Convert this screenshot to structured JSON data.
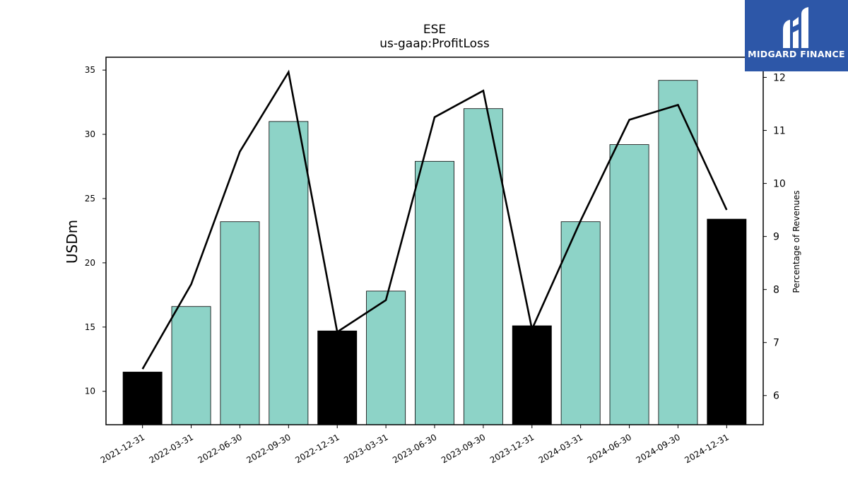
{
  "chart_data": {
    "type": "bar",
    "title": "ESE",
    "subtitle": "us-gaap:ProfitLoss",
    "ylabel": "USDm",
    "y2label": "Percentage of Revenues",
    "ylim": [
      7.4,
      36
    ],
    "y2lim": [
      5.45,
      12.38
    ],
    "yticks": [
      10,
      15,
      20,
      25,
      30,
      35
    ],
    "y2ticks": [
      6,
      7,
      8,
      9,
      10,
      11,
      12
    ],
    "categories": [
      "2021-12-31",
      "2022-03-31",
      "2022-06-30",
      "2022-09-30",
      "2022-12-31",
      "2023-03-31",
      "2023-06-30",
      "2023-09-30",
      "2023-12-31",
      "2024-03-31",
      "2024-06-30",
      "2024-09-30",
      "2024-12-31"
    ],
    "series": [
      {
        "kind": "bar",
        "values": [
          11.5,
          16.6,
          23.2,
          31.0,
          14.7,
          17.8,
          27.9,
          32.0,
          15.1,
          23.2,
          29.2,
          34.2,
          23.4
        ],
        "colors": [
          "#000000",
          "#8dd3c7",
          "#8dd3c7",
          "#8dd3c7",
          "#000000",
          "#8dd3c7",
          "#8dd3c7",
          "#8dd3c7",
          "#000000",
          "#8dd3c7",
          "#8dd3c7",
          "#8dd3c7",
          "#000000"
        ]
      },
      {
        "kind": "line",
        "axis": "right",
        "color": "#000000",
        "values": [
          6.5,
          8.1,
          10.6,
          12.1,
          7.2,
          7.8,
          11.25,
          11.75,
          7.25,
          9.3,
          11.2,
          11.48,
          9.5
        ]
      }
    ],
    "grid": false,
    "legend": "none"
  },
  "logo": {
    "text": "MIDGARD FINANCE"
  }
}
